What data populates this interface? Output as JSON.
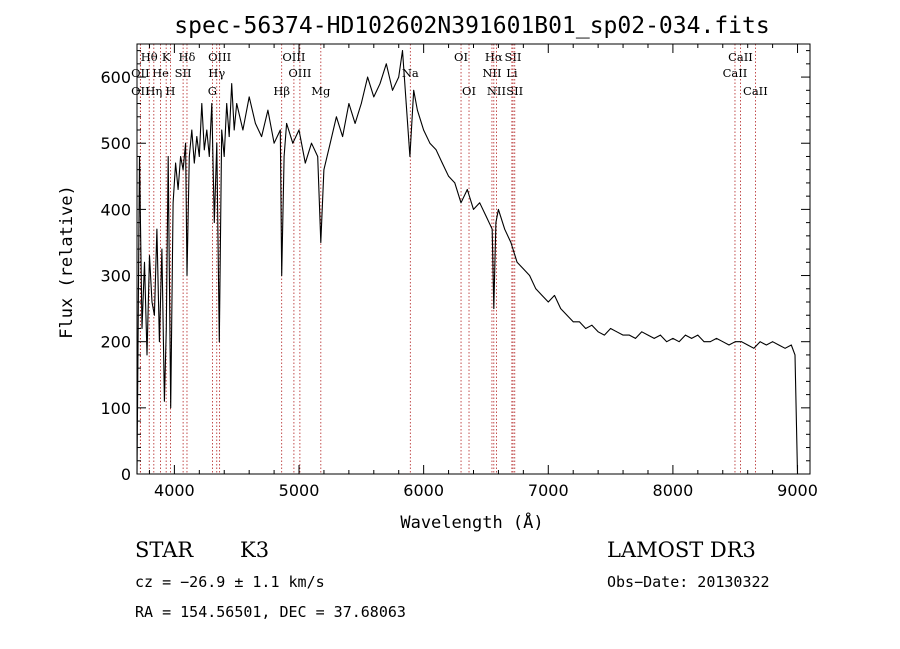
{
  "chart_data": {
    "type": "line",
    "title": "spec-56374-HD102602N391601B01_sp02-034.fits",
    "xlabel": "Wavelength (Å)",
    "ylabel": "Flux (relative)",
    "xlim": [
      3700,
      9100
    ],
    "ylim": [
      0,
      650
    ],
    "xticks": [
      4000,
      5000,
      6000,
      7000,
      8000,
      9000
    ],
    "yticks": [
      0,
      100,
      200,
      300,
      400,
      500,
      600
    ],
    "grid": false,
    "series": [
      {
        "x": [
          3700,
          3720,
          3740,
          3760,
          3780,
          3800,
          3820,
          3840,
          3860,
          3880,
          3900,
          3920,
          3935,
          3950,
          3970,
          3990,
          4010,
          4030,
          4050,
          4070,
          4090,
          4101,
          4120,
          4140,
          4160,
          4180,
          4200,
          4220,
          4240,
          4260,
          4280,
          4300,
          4320,
          4340,
          4360,
          4380,
          4400,
          4420,
          4440,
          4460,
          4480,
          4500,
          4550,
          4600,
          4650,
          4700,
          4750,
          4800,
          4850,
          4861,
          4880,
          4900,
          4950,
          5000,
          5050,
          5100,
          5150,
          5175,
          5200,
          5250,
          5300,
          5350,
          5400,
          5450,
          5500,
          5550,
          5600,
          5650,
          5700,
          5750,
          5800,
          5830,
          5860,
          5890,
          5920,
          5950,
          6000,
          6050,
          6100,
          6150,
          6200,
          6250,
          6300,
          6350,
          6400,
          6450,
          6500,
          6550,
          6563,
          6580,
          6600,
          6650,
          6700,
          6750,
          6800,
          6850,
          6900,
          6950,
          7000,
          7050,
          7100,
          7150,
          7200,
          7250,
          7300,
          7350,
          7400,
          7450,
          7500,
          7550,
          7600,
          7650,
          7700,
          7750,
          7800,
          7850,
          7900,
          7950,
          8000,
          8050,
          8100,
          8150,
          8200,
          8250,
          8300,
          8350,
          8400,
          8450,
          8500,
          8550,
          8600,
          8650,
          8700,
          8750,
          8800,
          8850,
          8900,
          8950,
          8980,
          9000
        ],
        "y": [
          0,
          480,
          220,
          320,
          180,
          330,
          260,
          240,
          370,
          200,
          340,
          110,
          220,
          480,
          100,
          410,
          470,
          430,
          480,
          460,
          500,
          300,
          480,
          520,
          470,
          510,
          480,
          560,
          490,
          520,
          480,
          560,
          380,
          500,
          200,
          520,
          480,
          560,
          510,
          590,
          520,
          560,
          520,
          570,
          530,
          510,
          550,
          500,
          520,
          300,
          480,
          530,
          500,
          520,
          470,
          500,
          480,
          350,
          460,
          500,
          540,
          510,
          560,
          530,
          560,
          600,
          570,
          590,
          620,
          580,
          600,
          640,
          560,
          480,
          580,
          550,
          520,
          500,
          490,
          470,
          450,
          440,
          410,
          430,
          400,
          410,
          390,
          370,
          250,
          380,
          400,
          370,
          350,
          320,
          310,
          300,
          280,
          270,
          260,
          270,
          250,
          240,
          230,
          230,
          220,
          225,
          215,
          210,
          220,
          215,
          210,
          210,
          205,
          215,
          210,
          205,
          210,
          200,
          205,
          200,
          210,
          205,
          210,
          200,
          200,
          205,
          200,
          195,
          200,
          200,
          195,
          190,
          200,
          195,
          200,
          195,
          190,
          195,
          180,
          0
        ]
      }
    ],
    "lines": [
      {
        "label": "Hθ",
        "x": 3798,
        "row": 1
      },
      {
        "label": "OII",
        "x": 3727,
        "row": 2
      },
      {
        "label": "OII",
        "x": 3727,
        "row": 3
      },
      {
        "label": "He",
        "x": 3889,
        "row": 2
      },
      {
        "label": "Hη",
        "x": 3835,
        "row": 3
      },
      {
        "label": "K",
        "x": 3934,
        "row": 1
      },
      {
        "label": "H",
        "x": 3968,
        "row": 3
      },
      {
        "label": "Hδ",
        "x": 4101,
        "row": 1
      },
      {
        "label": "SII",
        "x": 4070,
        "row": 2
      },
      {
        "label": "OIII",
        "x": 4363,
        "row": 1
      },
      {
        "label": "Hγ",
        "x": 4340,
        "row": 2
      },
      {
        "label": "G",
        "x": 4305,
        "row": 3
      },
      {
        "label": "Hβ",
        "x": 4861,
        "row": 3
      },
      {
        "label": "OIII",
        "x": 4959,
        "row": 1
      },
      {
        "label": "OIII",
        "x": 5007,
        "row": 2
      },
      {
        "label": "Mg",
        "x": 5175,
        "row": 3
      },
      {
        "label": "Na",
        "x": 5893,
        "row": 2
      },
      {
        "label": "OI",
        "x": 6300,
        "row": 1
      },
      {
        "label": "OI",
        "x": 6364,
        "row": 3
      },
      {
        "label": "Hα",
        "x": 6563,
        "row": 1
      },
      {
        "label": "NII",
        "x": 6548,
        "row": 2
      },
      {
        "label": "NII",
        "x": 6584,
        "row": 3
      },
      {
        "label": "SII",
        "x": 6717,
        "row": 1
      },
      {
        "label": "Li",
        "x": 6708,
        "row": 2
      },
      {
        "label": "SII",
        "x": 6731,
        "row": 3
      },
      {
        "label": "CaII",
        "x": 8542,
        "row": 1
      },
      {
        "label": "CaII",
        "x": 8498,
        "row": 2
      },
      {
        "label": "CaII",
        "x": 8662,
        "row": 3
      }
    ]
  },
  "info": {
    "object_type": "STAR",
    "subclass": "K3",
    "cz": "cz = −26.9 ± 1.1 km/s",
    "coords": "RA = 154.56501, DEC =  37.68063",
    "release": "LAMOST DR3",
    "obs_date": "Obs−Date: 20130322"
  },
  "colors": {
    "spectrum": "#000000",
    "line_marker": "#b22222",
    "axes": "#000000"
  }
}
